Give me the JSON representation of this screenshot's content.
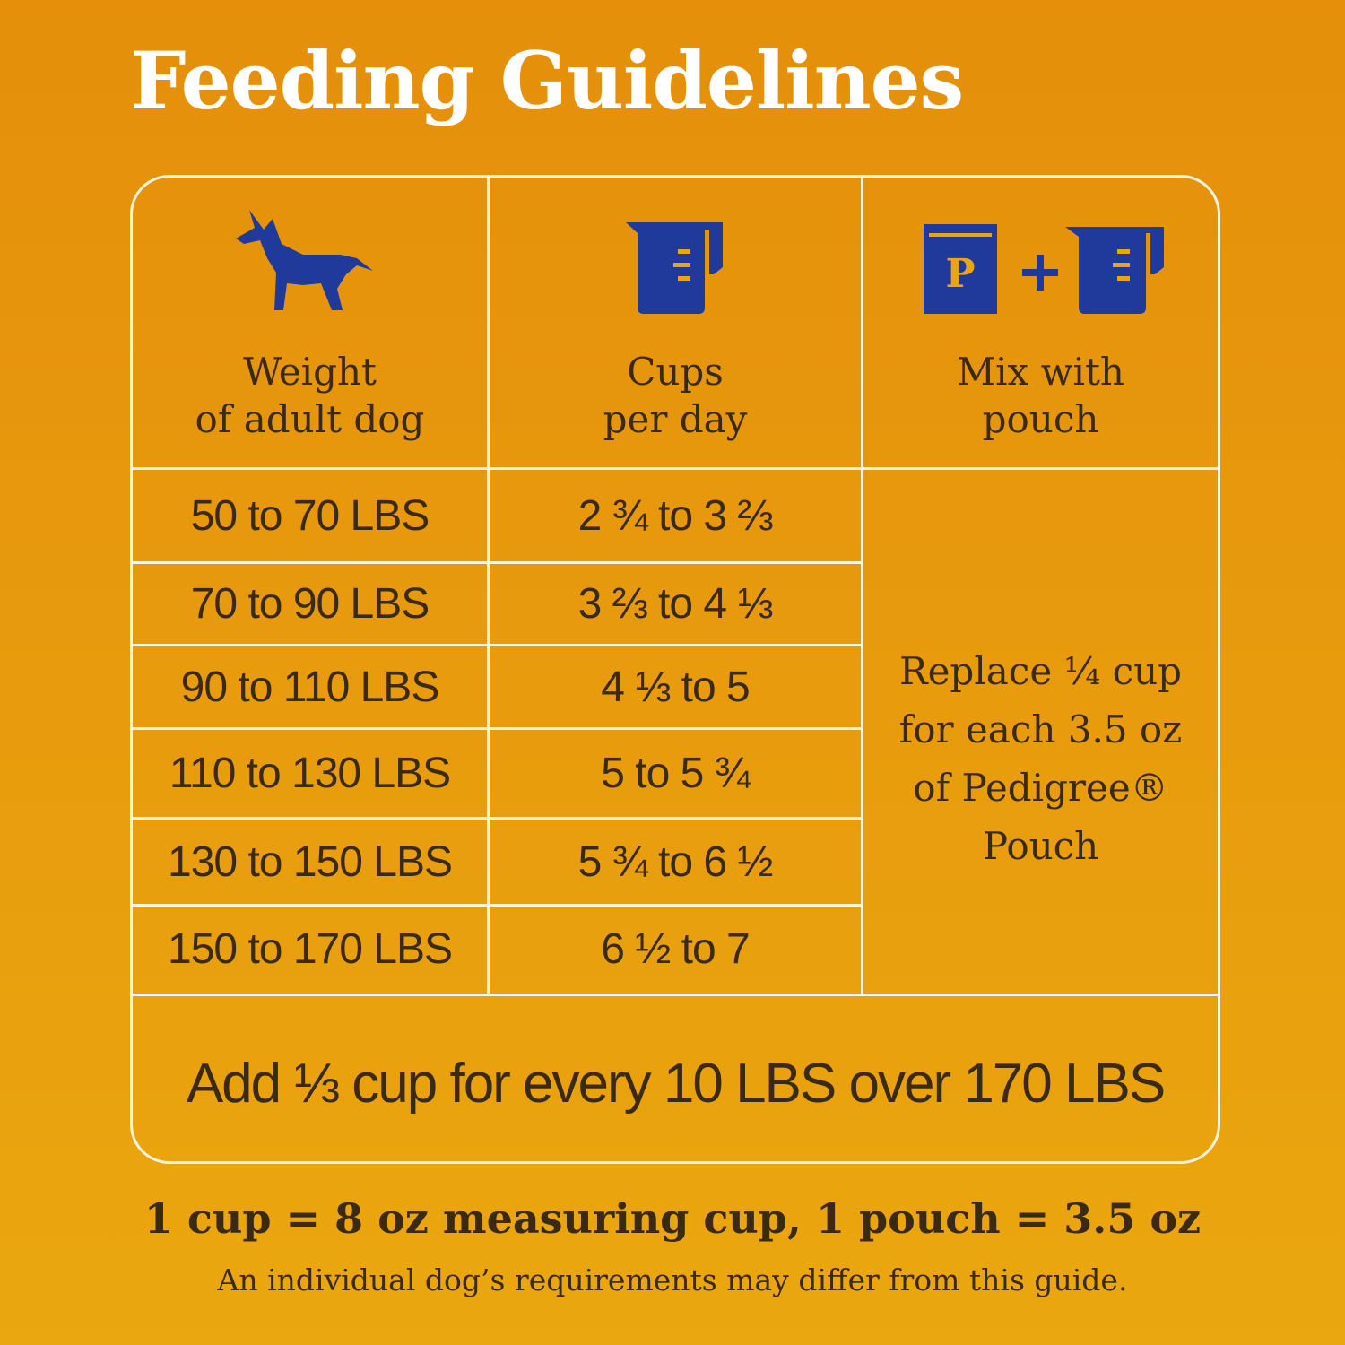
{
  "header": {
    "title": "Feeding Guidelines"
  },
  "table": {
    "columns": [
      "Weight\nof adult dog",
      "Cups\nper day",
      "Mix with\npouch"
    ],
    "rows": [
      [
        "50 to 70 LBS",
        "2 ¾ to 3 ⅔"
      ],
      [
        "70 to 90 LBS",
        "3 ⅔ to 4 ⅓"
      ],
      [
        "90 to 110 LBS",
        "4 ⅓ to 5"
      ],
      [
        "110 to 130 LBS",
        "5 to 5 ¾"
      ],
      [
        "130 to 150 LBS",
        "5 ¾ to 6 ½"
      ],
      [
        "150 to 170 LBS",
        "6 ½ to 7"
      ]
    ],
    "mix_note": "Replace ¼ cup\nfor each 3.5 oz\nof Pedigree®\nPouch",
    "add_note": "Add ⅓ cup for every 10 LBS over 170 LBS"
  },
  "footer": {
    "measure": "1 cup = 8 oz measuring cup, 1 pouch = 3.5 oz",
    "disclaimer": "An individual dog’s requirements may differ from this guide."
  }
}
